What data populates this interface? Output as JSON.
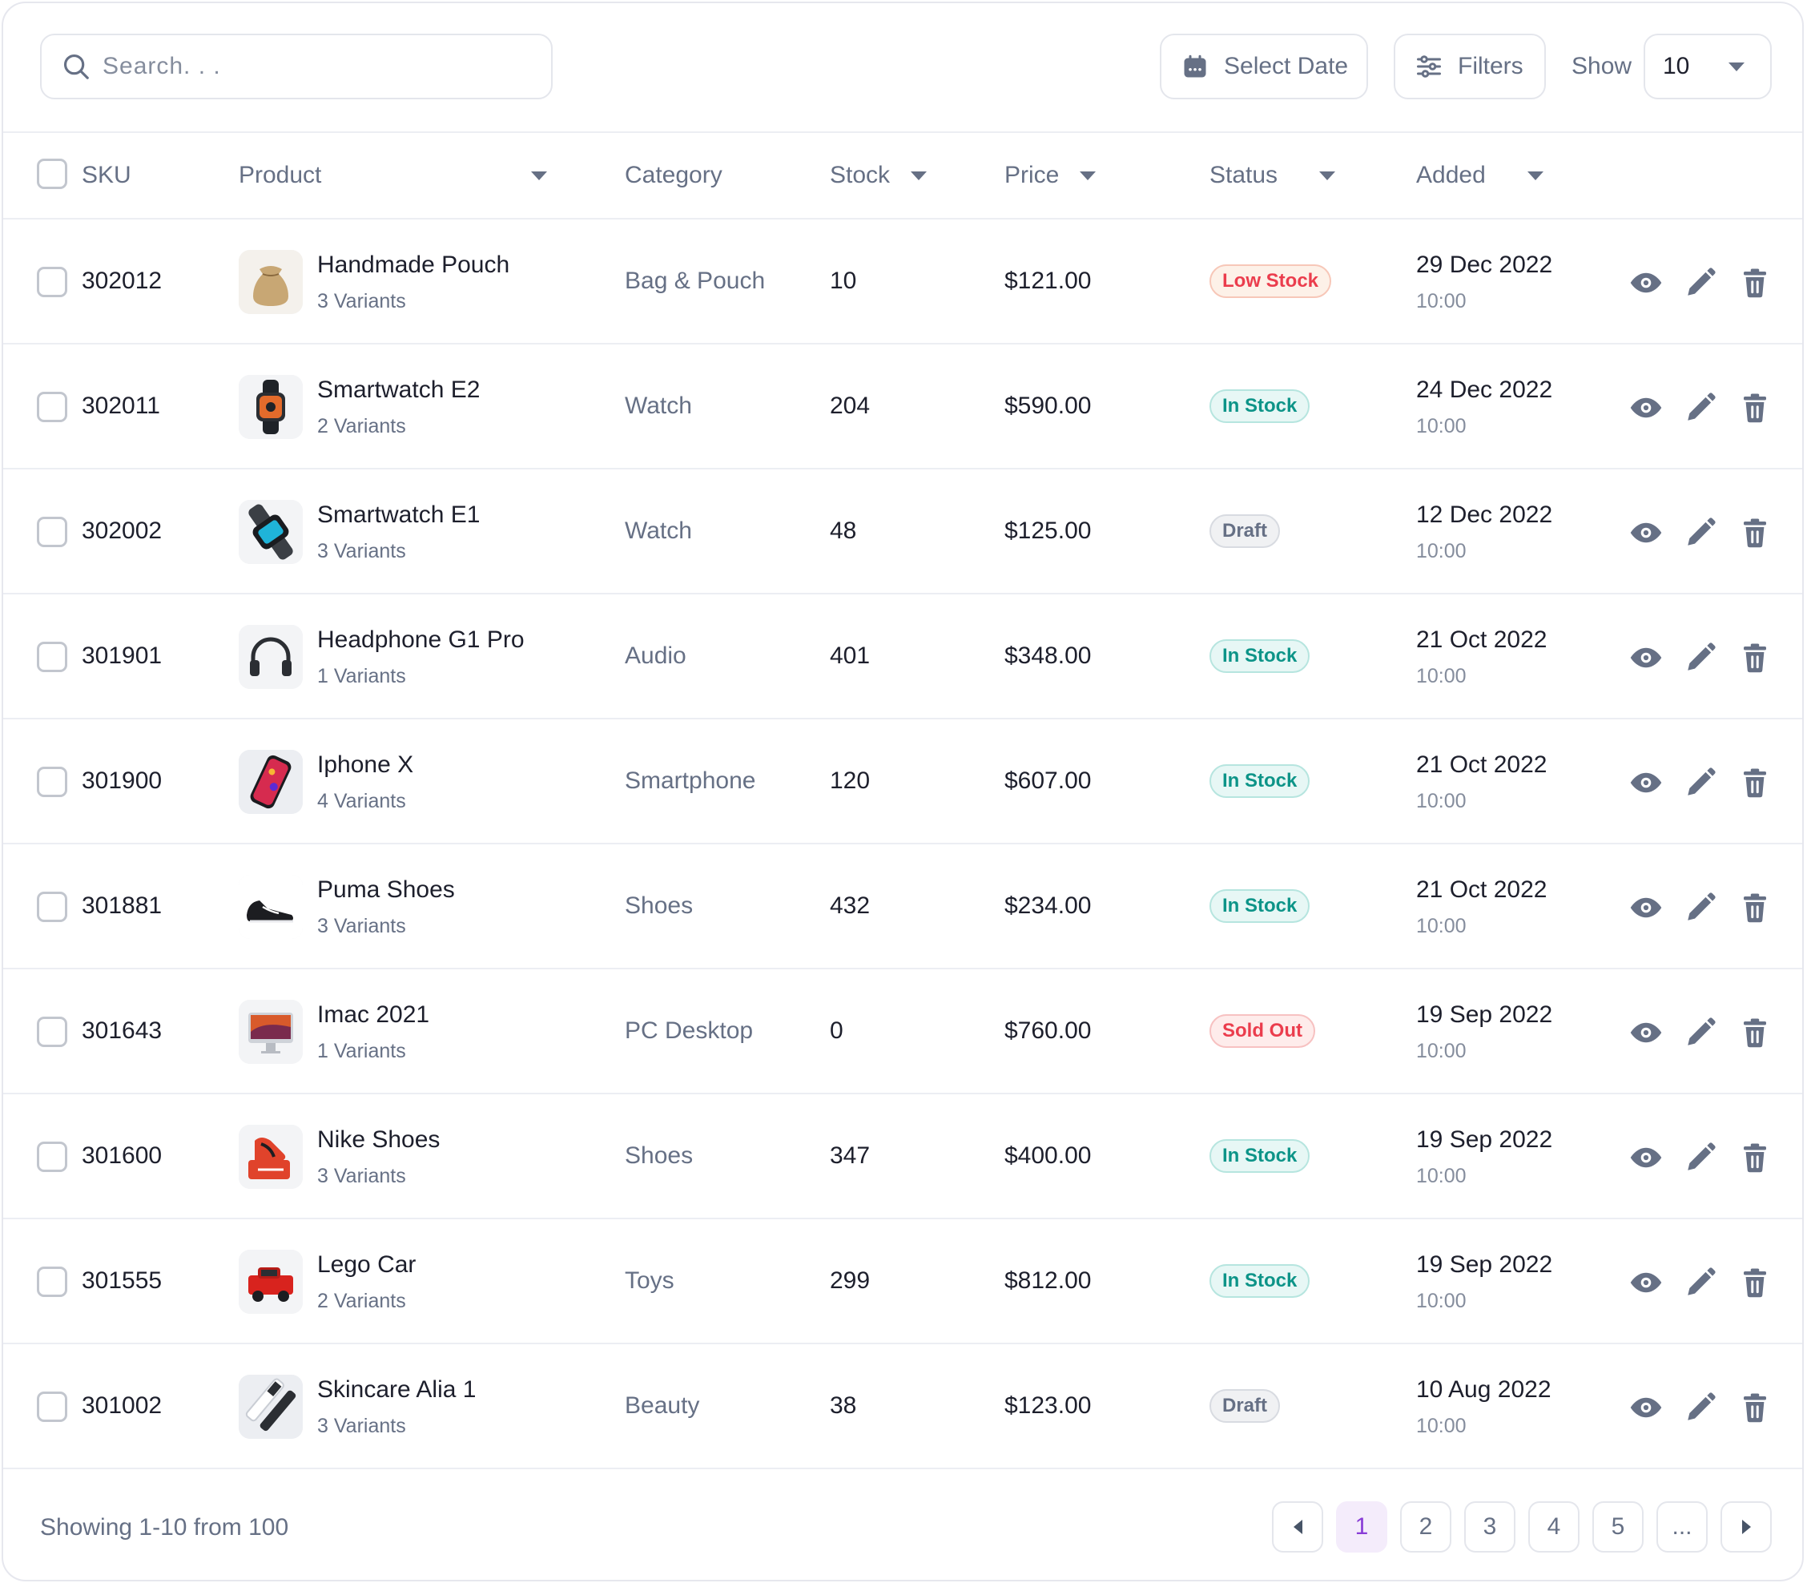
{
  "toolbar": {
    "search_placeholder": "Search. . .",
    "select_date_label": "Select Date",
    "filters_label": "Filters",
    "show_label": "Show",
    "show_value": "10"
  },
  "columns": {
    "sku": "SKU",
    "product": "Product",
    "category": "Category",
    "stock": "Stock",
    "price": "Price",
    "status": "Status",
    "added": "Added"
  },
  "rows": [
    {
      "sku": "302012",
      "name": "Handmade Pouch",
      "variants": "3 Variants",
      "category": "Bag & Pouch",
      "stock": "10",
      "price": "$121.00",
      "status": "Low Stock",
      "status_type": "low",
      "date": "29 Dec 2022",
      "time": "10:00",
      "thumb": "pouch"
    },
    {
      "sku": "302011",
      "name": "Smartwatch E2",
      "variants": "2 Variants",
      "category": "Watch",
      "stock": "204",
      "price": "$590.00",
      "status": "In Stock",
      "status_type": "in",
      "date": "24 Dec 2022",
      "time": "10:00",
      "thumb": "watch"
    },
    {
      "sku": "302002",
      "name": "Smartwatch E1",
      "variants": "3 Variants",
      "category": "Watch",
      "stock": "48",
      "price": "$125.00",
      "status": "Draft",
      "status_type": "draft",
      "date": "12 Dec 2022",
      "time": "10:00",
      "thumb": "watch2"
    },
    {
      "sku": "301901",
      "name": "Headphone G1 Pro",
      "variants": "1 Variants",
      "category": "Audio",
      "stock": "401",
      "price": "$348.00",
      "status": "In Stock",
      "status_type": "in",
      "date": "21 Oct 2022",
      "time": "10:00",
      "thumb": "headphone"
    },
    {
      "sku": "301900",
      "name": "Iphone X",
      "variants": "4 Variants",
      "category": "Smartphone",
      "stock": "120",
      "price": "$607.00",
      "status": "In Stock",
      "status_type": "in",
      "date": "21 Oct 2022",
      "time": "10:00",
      "thumb": "phone"
    },
    {
      "sku": "301881",
      "name": "Puma Shoes",
      "variants": "3 Variants",
      "category": "Shoes",
      "stock": "432",
      "price": "$234.00",
      "status": "In Stock",
      "status_type": "in",
      "date": "21 Oct 2022",
      "time": "10:00",
      "thumb": "shoe-black"
    },
    {
      "sku": "301643",
      "name": "Imac 2021",
      "variants": "1 Variants",
      "category": "PC Desktop",
      "stock": "0",
      "price": "$760.00",
      "status": "Sold Out",
      "status_type": "sold",
      "date": "19 Sep 2022",
      "time": "10:00",
      "thumb": "imac"
    },
    {
      "sku": "301600",
      "name": "Nike Shoes",
      "variants": "3 Variants",
      "category": "Shoes",
      "stock": "347",
      "price": "$400.00",
      "status": "In Stock",
      "status_type": "in",
      "date": "19 Sep 2022",
      "time": "10:00",
      "thumb": "shoe-red"
    },
    {
      "sku": "301555",
      "name": "Lego Car",
      "variants": "2 Variants",
      "category": "Toys",
      "stock": "299",
      "price": "$812.00",
      "status": "In Stock",
      "status_type": "in",
      "date": "19 Sep 2022",
      "time": "10:00",
      "thumb": "lego"
    },
    {
      "sku": "301002",
      "name": "Skincare Alia 1",
      "variants": "3 Variants",
      "category": "Beauty",
      "stock": "38",
      "price": "$123.00",
      "status": "Draft",
      "status_type": "draft",
      "date": "10 Aug 2022",
      "time": "10:00",
      "thumb": "skincare"
    }
  ],
  "pagination": {
    "summary": "Showing 1-10 from 100",
    "pages": [
      "1",
      "2",
      "3",
      "4",
      "5",
      "..."
    ],
    "active_page": "1"
  },
  "colors": {
    "accent": "#883cd6",
    "in_stock": "#0d9488",
    "alert": "#eb3d4d",
    "muted": "#667085"
  }
}
